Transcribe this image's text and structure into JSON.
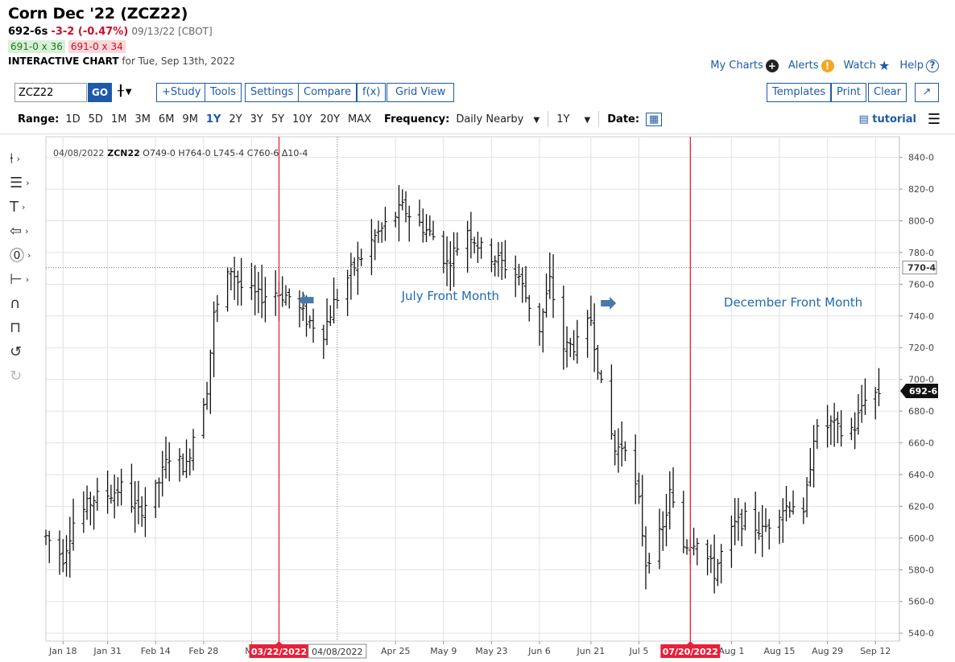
{
  "header": {
    "title": "Corn Dec '22 (ZCZ22)",
    "price": "692-6s",
    "change": "-3-2 (-0.47%)",
    "timestamp": "09/13/22 [CBOT]",
    "bid": "691-0 x 36",
    "ask": "691-0 x 34",
    "chart_label": "INTERACTIVE CHART",
    "chart_for": "for Tue, Sep 13th, 2022"
  },
  "toplinks": {
    "my_charts": "My Charts",
    "alerts": "Alerts",
    "watch": "Watch",
    "help": "Help"
  },
  "toolbar": {
    "symbol": "ZCZ22",
    "go": "GO",
    "study": "+Study",
    "tools": "Tools",
    "settings": "Settings",
    "compare": "Compare",
    "fx": "f(x)",
    "grid_view": "Grid View",
    "templates": "Templates",
    "print": "Print",
    "clear": "Clear"
  },
  "rangebar": {
    "range_label": "Range:",
    "ranges": [
      "1D",
      "5D",
      "1M",
      "3M",
      "6M",
      "9M",
      "1Y",
      "2Y",
      "3Y",
      "5Y",
      "10Y",
      "20Y",
      "MAX"
    ],
    "active_range": "1Y",
    "frequency_label": "Frequency:",
    "frequency_value": "Daily Nearby",
    "period_value": "1Y",
    "date_label": "Date:",
    "tutorial": "tutorial"
  },
  "chart_data": {
    "type": "ohlc",
    "info_line": {
      "date": "04/08/2022",
      "symbol": "ZCN22",
      "open": "O749-0",
      "high": "H764-0",
      "low": "L745-4",
      "close": "C760-6",
      "change": "Δ10-4"
    },
    "y_ticks": [
      540,
      560,
      580,
      600,
      620,
      640,
      660,
      680,
      700,
      720,
      740,
      760,
      780,
      800,
      820,
      840
    ],
    "y_tick_labels": [
      "540-0",
      "560-0",
      "580-0",
      "600-0",
      "620-0",
      "640-0",
      "660-0",
      "680-0",
      "700-0",
      "720-0",
      "740-0",
      "760-0",
      "780-0",
      "800-0",
      "820-0",
      "840-0"
    ],
    "ylim": [
      535,
      853
    ],
    "x_range": [
      "2022-01-13",
      "2022-09-19"
    ],
    "x_ticks": [
      {
        "date": "2022-01-18",
        "label": "Jan 18"
      },
      {
        "date": "2022-01-31",
        "label": "Jan 31"
      },
      {
        "date": "2022-02-14",
        "label": "Feb 14"
      },
      {
        "date": "2022-02-28",
        "label": "Feb 28"
      },
      {
        "date": "2022-03-14",
        "label": "Ma"
      },
      {
        "date": "2022-04-25",
        "label": "Apr 25"
      },
      {
        "date": "2022-05-09",
        "label": "May 9"
      },
      {
        "date": "2022-05-23",
        "label": "May 23"
      },
      {
        "date": "2022-06-06",
        "label": "Jun 6"
      },
      {
        "date": "2022-06-21",
        "label": "Jun 21"
      },
      {
        "date": "2022-07-05",
        "label": "Jul 5"
      },
      {
        "date": "2022-08-01",
        "label": "Aug 1"
      },
      {
        "date": "2022-08-15",
        "label": "Aug 15"
      },
      {
        "date": "2022-08-29",
        "label": "Aug 29"
      },
      {
        "date": "2022-09-12",
        "label": "Sep 12"
      }
    ],
    "crosshair": {
      "date": "2022-04-08",
      "date_label": "04/08/2022",
      "price": 770.5,
      "price_label": "770-4"
    },
    "last_price": {
      "price": 692.75,
      "label": "692-6"
    },
    "vlines": [
      {
        "date": "2022-03-22",
        "label": "03/22/2022",
        "color": "#e8203a"
      },
      {
        "date": "2022-07-20",
        "label": "07/20/2022",
        "color": "#e8203a"
      }
    ],
    "annotations": [
      {
        "text": "July Front Month",
        "date": "2022-05-11",
        "price": 750,
        "color": "#1e6ab0"
      },
      {
        "text": "December Front Month",
        "date": "2022-08-19",
        "price": 746,
        "color": "#1e6ab0"
      }
    ],
    "arrows": [
      {
        "direction": "left",
        "date": "2022-03-30",
        "price": 750,
        "color": "#4a78a8"
      },
      {
        "direction": "right",
        "date": "2022-06-26",
        "price": 748,
        "color": "#4a78a8"
      }
    ],
    "anchors": [
      [
        "2022-01-13",
        601
      ],
      [
        "2022-01-18",
        588
      ],
      [
        "2022-01-21",
        610
      ],
      [
        "2022-01-27",
        625
      ],
      [
        "2022-02-01",
        628
      ],
      [
        "2022-02-04",
        632
      ],
      [
        "2022-02-09",
        616
      ],
      [
        "2022-02-14",
        630
      ],
      [
        "2022-02-18",
        652
      ],
      [
        "2022-02-23",
        645
      ],
      [
        "2022-02-25",
        665
      ],
      [
        "2022-03-01",
        695
      ],
      [
        "2022-03-03",
        740
      ],
      [
        "2022-03-08",
        770
      ],
      [
        "2022-03-11",
        758
      ],
      [
        "2022-03-16",
        752
      ],
      [
        "2022-03-21",
        755
      ],
      [
        "2022-03-25",
        752
      ],
      [
        "2022-03-30",
        738
      ],
      [
        "2022-04-04",
        730
      ],
      [
        "2022-04-07",
        748
      ],
      [
        "2022-04-12",
        768
      ],
      [
        "2022-04-19",
        790
      ],
      [
        "2022-04-22",
        797
      ],
      [
        "2022-04-27",
        808
      ],
      [
        "2022-05-02",
        798
      ],
      [
        "2022-05-06",
        790
      ],
      [
        "2022-05-10",
        773
      ],
      [
        "2022-05-16",
        795
      ],
      [
        "2022-05-20",
        782
      ],
      [
        "2022-05-25",
        775
      ],
      [
        "2022-05-31",
        765
      ],
      [
        "2022-06-02",
        752
      ],
      [
        "2022-06-06",
        732
      ],
      [
        "2022-06-09",
        762
      ],
      [
        "2022-06-13",
        720
      ],
      [
        "2022-06-17",
        722
      ],
      [
        "2022-06-21",
        738
      ],
      [
        "2022-06-24",
        695
      ],
      [
        "2022-06-28",
        655
      ],
      [
        "2022-07-01",
        660
      ],
      [
        "2022-07-05",
        622
      ],
      [
        "2022-07-07",
        585
      ],
      [
        "2022-07-12",
        605
      ],
      [
        "2022-07-14",
        628
      ],
      [
        "2022-07-18",
        595
      ],
      [
        "2022-07-22",
        600
      ],
      [
        "2022-07-27",
        578
      ],
      [
        "2022-07-29",
        590
      ],
      [
        "2022-08-02",
        608
      ],
      [
        "2022-08-05",
        612
      ],
      [
        "2022-08-10",
        604
      ],
      [
        "2022-08-15",
        618
      ],
      [
        "2022-08-19",
        622
      ],
      [
        "2022-08-22",
        612
      ],
      [
        "2022-08-25",
        665
      ],
      [
        "2022-08-30",
        672
      ],
      [
        "2022-09-02",
        666
      ],
      [
        "2022-09-06",
        670
      ],
      [
        "2022-09-09",
        690
      ],
      [
        "2022-09-13",
        692
      ]
    ]
  }
}
